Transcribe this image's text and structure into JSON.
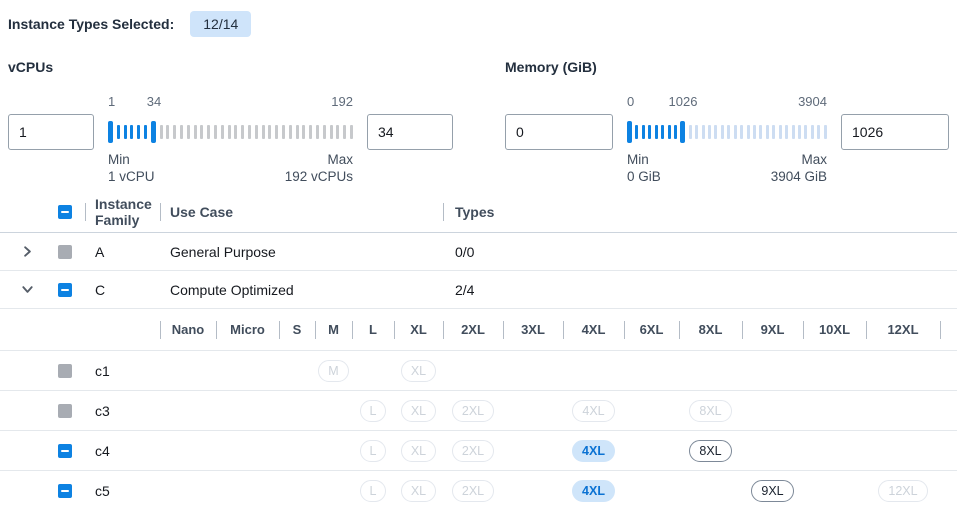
{
  "colors": {
    "accent_blue": "#0d82e2",
    "count_badge_bg": "#cfe4fa",
    "disabled_checkbox": "#a8acb3",
    "selected_badge_bg": "#cfe5fa",
    "selected_badge_text": "#0b72d3",
    "disabled_badge_border": "#e4e8ee",
    "disabled_badge_text": "#cdd3da",
    "enabled_badge_border": "#7d8998",
    "enabled_badge_text": "#1a222e"
  },
  "header": {
    "label": "Instance Types Selected:",
    "badge": "12/14"
  },
  "filters": [
    {
      "title": "vCPUs",
      "min_input": "1",
      "max_input": "34",
      "scale": {
        "start": "1",
        "current": "34",
        "end": "192"
      },
      "min_caption_label": "Min",
      "min_caption_value": "1 vCPU",
      "max_caption_label": "Max",
      "max_caption_value": "192 vCPUs",
      "ticks": {
        "total": 36,
        "handle1": 0,
        "handle2": 6,
        "unselected_color": "#c7c9cc"
      }
    },
    {
      "title": "Memory (GiB)",
      "min_input": "0",
      "max_input": "1026",
      "scale": {
        "start": "0",
        "current": "1026",
        "end": "3904"
      },
      "min_caption_label": "Min",
      "min_caption_value": "0 GiB",
      "max_caption_label": "Max",
      "max_caption_value": "3904 GiB",
      "ticks": {
        "total": 31,
        "handle1": 0,
        "handle2": 8,
        "unselected_color": "#cdddf2"
      }
    }
  ],
  "table": {
    "select_all_state": "indeterminate",
    "columns": {
      "family": "Instance Family",
      "use_case": "Use Case",
      "types": "Types"
    },
    "size_columns": [
      "Nano",
      "Micro",
      "S",
      "M",
      "L",
      "XL",
      "2XL",
      "3XL",
      "4XL",
      "6XL",
      "8XL",
      "9XL",
      "10XL",
      "12XL"
    ],
    "families": [
      {
        "name": "A",
        "use_case": "General Purpose",
        "types": "0/0",
        "expanded": false,
        "checkbox": "disabled",
        "instances": []
      },
      {
        "name": "C",
        "use_case": "Compute Optimized",
        "types": "2/4",
        "expanded": true,
        "checkbox": "indeterminate",
        "instances": [
          {
            "name": "c1",
            "checkbox": "disabled",
            "badges": [
              {
                "size": "M",
                "state": "disabled"
              },
              {
                "size": "XL",
                "state": "disabled"
              }
            ]
          },
          {
            "name": "c3",
            "checkbox": "disabled",
            "badges": [
              {
                "size": "L",
                "state": "disabled"
              },
              {
                "size": "XL",
                "state": "disabled"
              },
              {
                "size": "2XL",
                "state": "disabled"
              },
              {
                "size": "4XL",
                "state": "disabled"
              },
              {
                "size": "8XL",
                "state": "disabled"
              }
            ]
          },
          {
            "name": "c4",
            "checkbox": "indeterminate",
            "badges": [
              {
                "size": "L",
                "state": "disabled"
              },
              {
                "size": "XL",
                "state": "disabled"
              },
              {
                "size": "2XL",
                "state": "disabled"
              },
              {
                "size": "4XL",
                "state": "selected"
              },
              {
                "size": "8XL",
                "state": "enabled"
              }
            ]
          },
          {
            "name": "c5",
            "checkbox": "indeterminate",
            "badges": [
              {
                "size": "L",
                "state": "disabled"
              },
              {
                "size": "XL",
                "state": "disabled"
              },
              {
                "size": "2XL",
                "state": "disabled"
              },
              {
                "size": "4XL",
                "state": "selected"
              },
              {
                "size": "9XL",
                "state": "enabled"
              },
              {
                "size": "12XL",
                "state": "disabled"
              }
            ]
          }
        ]
      }
    ]
  }
}
